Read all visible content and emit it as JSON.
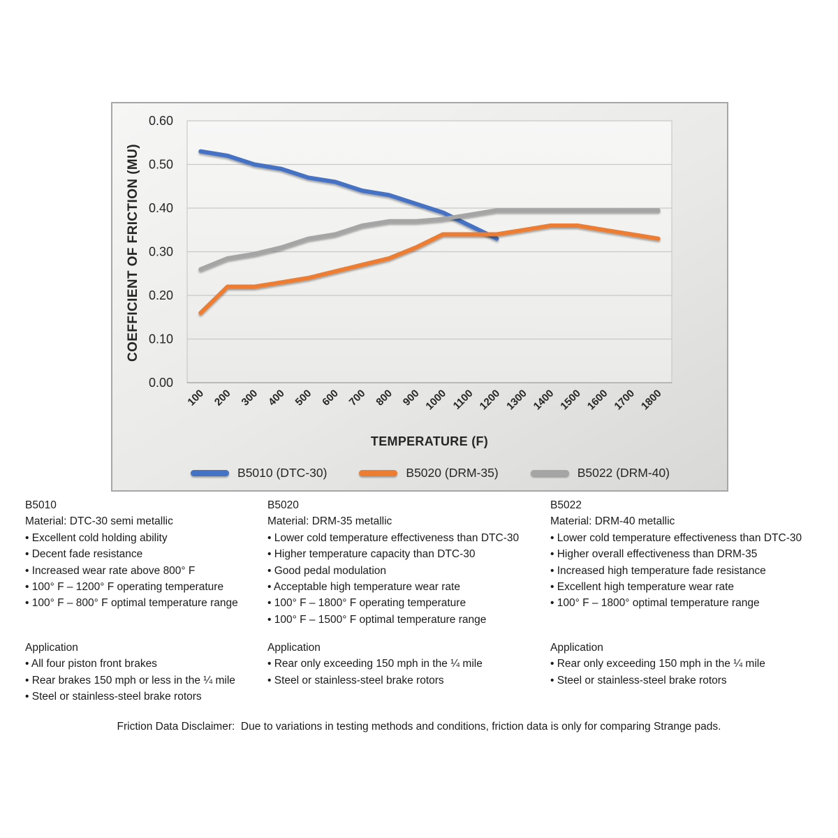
{
  "chart_data": {
    "type": "line",
    "title": "",
    "xlabel": "TEMPERATURE (F)",
    "ylabel": "COEFFICIENT OF FRICTION (MU)",
    "x_categories": [
      "100",
      "200",
      "300",
      "400",
      "500",
      "600",
      "700",
      "800",
      "900",
      "1000",
      "1100",
      "1200",
      "1300",
      "1400",
      "1500",
      "1600",
      "1700",
      "1800"
    ],
    "ylim": [
      0.0,
      0.6
    ],
    "ytick_labels_top_to_bottom": [
      "0.60",
      "0.50",
      "0.40",
      "0.30",
      "0.20",
      "0.10",
      "0.00"
    ],
    "grid": "horizontal",
    "legend_position": "bottom",
    "series": [
      {
        "name": "B5010 (DTC-30)",
        "color": "#4472C4",
        "values": [
          0.53,
          0.52,
          0.5,
          0.49,
          0.47,
          0.46,
          0.44,
          0.43,
          0.41,
          0.39,
          0.36,
          0.33
        ]
      },
      {
        "name": "B5020 (DRM-35)",
        "color": "#ED7D31",
        "values": [
          0.16,
          0.22,
          0.22,
          0.23,
          0.24,
          0.255,
          0.27,
          0.285,
          0.31,
          0.34,
          0.34,
          0.34,
          0.35,
          0.36,
          0.36,
          0.35,
          0.34,
          0.33
        ]
      },
      {
        "name": "B5022 (DRM-40)",
        "color": "#A5A5A5",
        "values": [
          0.26,
          0.285,
          0.295,
          0.31,
          0.33,
          0.34,
          0.36,
          0.37,
          0.37,
          0.375,
          0.385,
          0.395,
          0.395,
          0.395,
          0.395,
          0.395,
          0.395,
          0.395
        ]
      }
    ]
  },
  "bullet": "•",
  "columns": [
    {
      "product": "B5010",
      "material": "Material: DTC-30 semi metallic",
      "features": [
        "Excellent cold holding ability",
        "Decent fade resistance",
        "Increased wear rate above 800° F",
        "100° F – 1200° F operating temperature",
        "100° F – 800° F optimal temperature range"
      ],
      "application_heading": "Application",
      "applications": [
        "All four piston front brakes",
        "Rear brakes 150 mph or less in the ¼ mile",
        "Steel or stainless-steel brake rotors"
      ]
    },
    {
      "product": "B5020",
      "material": "Material: DRM-35 metallic",
      "features": [
        "Lower cold temperature effectiveness than DTC-30",
        "Higher temperature capacity than DTC-30",
        "Good pedal modulation",
        "Acceptable high temperature wear rate",
        "100° F – 1800° F operating temperature",
        "100° F – 1500° F optimal temperature range"
      ],
      "application_heading": "Application",
      "applications": [
        "Rear only exceeding 150 mph in the ¼ mile",
        "Steel or stainless-steel brake rotors"
      ]
    },
    {
      "product": "B5022",
      "material": "Material: DRM-40 metallic",
      "features": [
        "Lower cold temperature effectiveness than DTC-30",
        "Higher overall effectiveness than DRM-35",
        "Increased high temperature fade resistance",
        "Excellent high temperature wear rate",
        "100° F – 1800° optimal temperature range"
      ],
      "application_heading": "Application",
      "applications": [
        "Rear only exceeding 150 mph in the ¼ mile",
        "Steel or stainless-steel brake rotors"
      ]
    }
  ],
  "disclaimer": "Friction Data Disclaimer:  Due to variations in testing methods and conditions, friction data is only for comparing Strange pads."
}
